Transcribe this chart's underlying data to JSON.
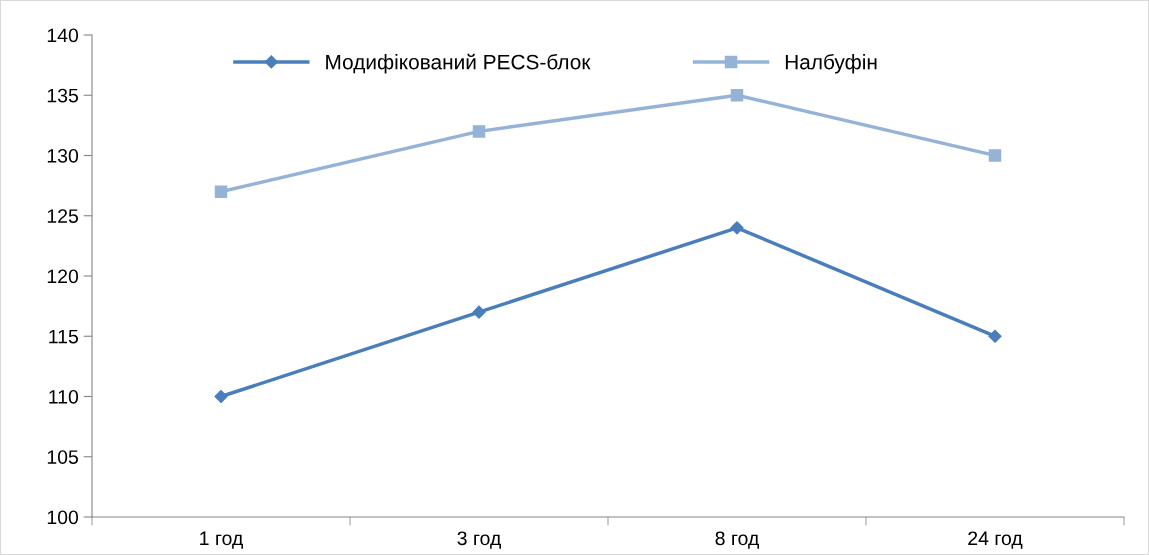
{
  "chart_data": {
    "type": "line",
    "categories": [
      "1 год",
      "3 год",
      "8 год",
      "24 год"
    ],
    "series": [
      {
        "name": "Модифікований PECS-блок",
        "color": "#4a7ebb",
        "marker": "diamond",
        "values": [
          110,
          117,
          124,
          115
        ]
      },
      {
        "name": "Налбуфін",
        "color": "#95b3d7",
        "marker": "square",
        "values": [
          127,
          132,
          135,
          130
        ]
      }
    ],
    "ylim": [
      100,
      140
    ],
    "yticks": [
      100,
      105,
      110,
      115,
      120,
      125,
      130,
      135,
      140
    ],
    "grid": false,
    "legend": "top",
    "line_style": "solid"
  }
}
